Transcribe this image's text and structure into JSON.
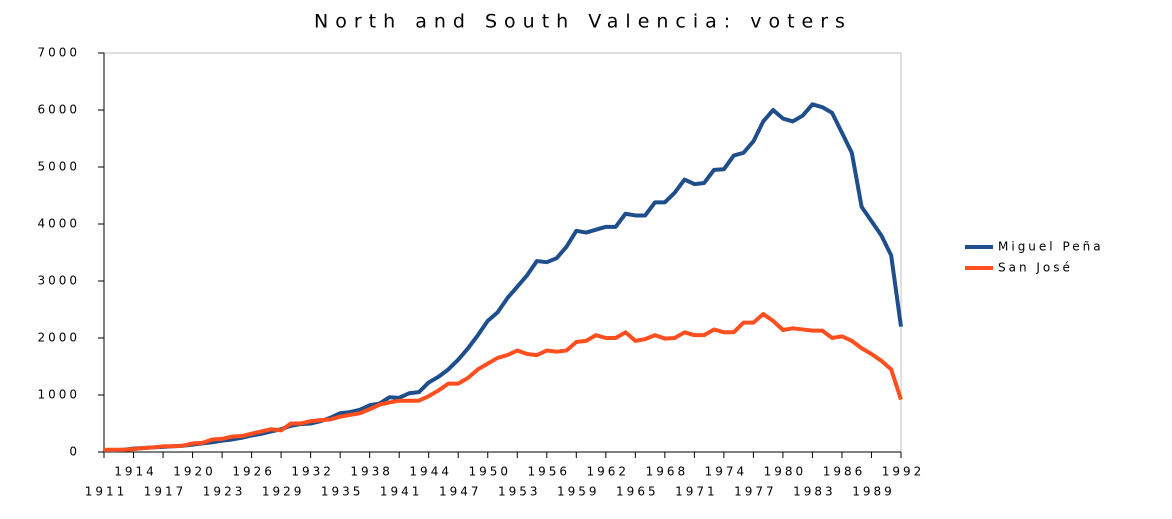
{
  "chart_data": {
    "type": "line",
    "title": "North and South Valencia: voters",
    "x": [
      1911,
      1912,
      1913,
      1914,
      1915,
      1916,
      1917,
      1918,
      1919,
      1920,
      1921,
      1922,
      1923,
      1924,
      1925,
      1926,
      1927,
      1928,
      1929,
      1930,
      1931,
      1932,
      1933,
      1934,
      1935,
      1936,
      1937,
      1938,
      1939,
      1940,
      1941,
      1942,
      1943,
      1944,
      1945,
      1946,
      1947,
      1948,
      1949,
      1950,
      1951,
      1952,
      1953,
      1954,
      1955,
      1956,
      1957,
      1958,
      1959,
      1960,
      1961,
      1962,
      1963,
      1964,
      1965,
      1966,
      1967,
      1968,
      1969,
      1970,
      1971,
      1972,
      1973,
      1974,
      1975,
      1976,
      1977,
      1978,
      1979,
      1980,
      1981,
      1982,
      1983,
      1984,
      1985,
      1986,
      1987,
      1988,
      1989,
      1990,
      1991,
      1992
    ],
    "series": [
      {
        "name": "Miguel Peña",
        "color": "#1f4e8c",
        "values": [
          30,
          30,
          40,
          60,
          70,
          80,
          90,
          100,
          110,
          130,
          150,
          170,
          200,
          220,
          250,
          290,
          320,
          360,
          400,
          460,
          490,
          500,
          540,
          600,
          680,
          700,
          740,
          820,
          850,
          960,
          950,
          1030,
          1050,
          1220,
          1320,
          1450,
          1620,
          1820,
          2050,
          2300,
          2450,
          2700,
          2900,
          3100,
          3350,
          3330,
          3400,
          3600,
          3880,
          3850,
          3900,
          3950,
          3950,
          4180,
          4150,
          4150,
          4380,
          4380,
          4550,
          4780,
          4700,
          4720,
          4950,
          4960,
          5200,
          5250,
          5450,
          5800,
          6000,
          5850,
          5800,
          5900,
          6100,
          6050,
          5950,
          5600,
          5250,
          4300,
          4050,
          3800,
          3450,
          2200
        ]
      },
      {
        "name": "San José",
        "color": "#ff4f1f",
        "values": [
          40,
          40,
          40,
          50,
          70,
          80,
          100,
          100,
          110,
          150,
          160,
          220,
          230,
          270,
          280,
          320,
          360,
          400,
          380,
          500,
          500,
          540,
          560,
          570,
          620,
          650,
          680,
          750,
          830,
          870,
          900,
          900,
          900,
          980,
          1080,
          1200,
          1200,
          1300,
          1450,
          1550,
          1650,
          1700,
          1780,
          1720,
          1700,
          1780,
          1760,
          1780,
          1930,
          1950,
          2050,
          2000,
          2000,
          2100,
          1950,
          1980,
          2050,
          1990,
          2000,
          2100,
          2050,
          2050,
          2150,
          2100,
          2100,
          2270,
          2270,
          2420,
          2300,
          2140,
          2170,
          2150,
          2130,
          2130,
          2000,
          2030,
          1950,
          1820,
          1720,
          1600,
          1450,
          920
        ]
      }
    ],
    "xlim": [
      1911,
      1992
    ],
    "xticks": [
      1911,
      1914,
      1917,
      1920,
      1923,
      1926,
      1929,
      1932,
      1935,
      1938,
      1941,
      1944,
      1947,
      1950,
      1953,
      1956,
      1959,
      1962,
      1965,
      1968,
      1971,
      1974,
      1977,
      1980,
      1983,
      1986,
      1989,
      1992
    ],
    "ylim": [
      0,
      7000
    ],
    "yticks": [
      0,
      1000,
      2000,
      3000,
      4000,
      5000,
      6000,
      7000
    ],
    "legend": "right"
  }
}
